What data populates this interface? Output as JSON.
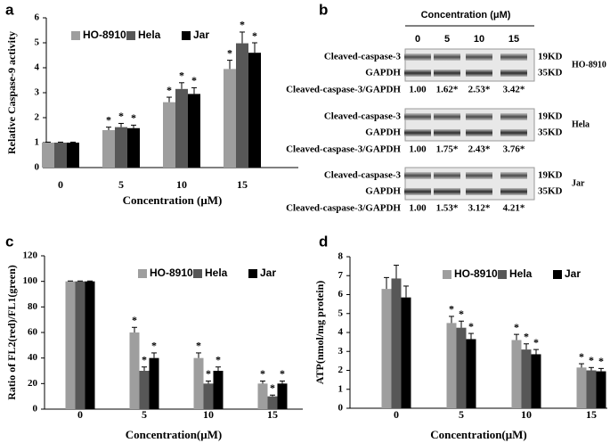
{
  "chart_data": [
    {
      "type": "bar",
      "panel_label": "a",
      "y_label": "Relative Caspase-9 activity",
      "x_label": "Concentration (μM)",
      "categories": [
        "0",
        "5",
        "10",
        "15"
      ],
      "ylim": [
        0,
        6
      ],
      "yticks": [
        0,
        1,
        2,
        3,
        4,
        5,
        6
      ],
      "legend": "upper left",
      "series": [
        {
          "name": "HO-8910",
          "color": "#9e9e9e",
          "values": [
            1,
            1.5,
            2.62,
            3.95
          ],
          "errors": [
            0.02,
            0.12,
            0.2,
            0.35
          ],
          "markers": [
            null,
            "*",
            "*",
            "*"
          ]
        },
        {
          "name": "Hela",
          "color": "#575757",
          "values": [
            1,
            1.62,
            3.15,
            4.98
          ],
          "errors": [
            0.02,
            0.15,
            0.25,
            0.45
          ],
          "markers": [
            null,
            "*",
            "*",
            "*"
          ]
        },
        {
          "name": "Jar",
          "color": "#000000",
          "values": [
            1,
            1.58,
            2.95,
            4.6
          ],
          "errors": [
            0.02,
            0.12,
            0.25,
            0.4
          ],
          "markers": [
            null,
            "*",
            "*",
            "*"
          ]
        }
      ]
    },
    {
      "type": "bar",
      "panel_label": "c",
      "y_label": "Ratio of FL2(red)/FL1(green)",
      "x_label": "Concentration(μM)",
      "categories": [
        "0",
        "5",
        "10",
        "15"
      ],
      "ylim": [
        0,
        120
      ],
      "yticks": [
        0,
        20,
        40,
        60,
        80,
        100,
        120
      ],
      "legend": "upper right",
      "series": [
        {
          "name": "HO-8910",
          "color": "#9e9e9e",
          "values": [
            100,
            60,
            40,
            20
          ],
          "errors": [
            0.3,
            4,
            4,
            2
          ],
          "markers": [
            null,
            "*",
            "*",
            "*"
          ]
        },
        {
          "name": "Hela",
          "color": "#575757",
          "values": [
            100,
            30,
            20,
            10
          ],
          "errors": [
            0.3,
            3,
            2,
            1
          ],
          "markers": [
            null,
            "*",
            "*",
            "*"
          ]
        },
        {
          "name": "Jar",
          "color": "#000000",
          "values": [
            100,
            40,
            30,
            20
          ],
          "errors": [
            0.3,
            4,
            3,
            2
          ],
          "markers": [
            null,
            "*",
            "*",
            "*"
          ]
        }
      ]
    },
    {
      "type": "bar",
      "panel_label": "d",
      "y_label": "ATP(nmol/mg protein)",
      "x_label": "Concentration(μM)",
      "categories": [
        "0",
        "5",
        "10",
        "15"
      ],
      "ylim": [
        0,
        8
      ],
      "yticks": [
        0,
        1,
        2,
        3,
        4,
        5,
        6,
        7,
        8
      ],
      "legend": "upper right",
      "series": [
        {
          "name": "HO-8910",
          "color": "#9e9e9e",
          "values": [
            6.3,
            4.5,
            3.6,
            2.15
          ],
          "errors": [
            0.6,
            0.35,
            0.3,
            0.2
          ],
          "markers": [
            null,
            "*",
            "*",
            "*"
          ]
        },
        {
          "name": "Hela",
          "color": "#575757",
          "values": [
            6.85,
            4.25,
            3.1,
            2.0
          ],
          "errors": [
            0.7,
            0.35,
            0.3,
            0.15
          ],
          "markers": [
            null,
            "*",
            "*",
            "*"
          ]
        },
        {
          "name": "Jar",
          "color": "#000000",
          "values": [
            5.85,
            3.65,
            2.85,
            1.95
          ],
          "errors": [
            0.6,
            0.3,
            0.25,
            0.15
          ],
          "markers": [
            null,
            "*",
            "*",
            "*"
          ]
        }
      ]
    }
  ],
  "blot": {
    "panel_label": "b",
    "header": "Concentration (μM)",
    "lanes": [
      0,
      5,
      10,
      15
    ],
    "groups": [
      {
        "cell": "HO-8910",
        "bands": [
          {
            "label": "Cleaved-caspase-3",
            "size": "19KD"
          },
          {
            "label": "GAPDH",
            "size": "35KD"
          }
        ],
        "ratio_label": "Cleaved-caspase-3/GAPDH",
        "ratios": [
          "1.00",
          "1.62*",
          "2.53*",
          "3.42*"
        ]
      },
      {
        "cell": "Hela",
        "bands": [
          {
            "label": "Cleaved-caspase-3",
            "size": "19KD"
          },
          {
            "label": "GAPDH",
            "size": "35KD"
          }
        ],
        "ratio_label": "Cleaved-caspase-3/GAPDH",
        "ratios": [
          "1.00",
          "1.75*",
          "2.43*",
          "3.76*"
        ]
      },
      {
        "cell": "Jar",
        "bands": [
          {
            "label": "Cleaved-caspase-3",
            "size": "19KD"
          },
          {
            "label": "GAPDH",
            "size": "35KD"
          }
        ],
        "ratio_label": "Cleaved-caspase-3/GAPDH",
        "ratios": [
          "1.00",
          "1.53*",
          "3.12*",
          "4.21*"
        ]
      }
    ]
  }
}
